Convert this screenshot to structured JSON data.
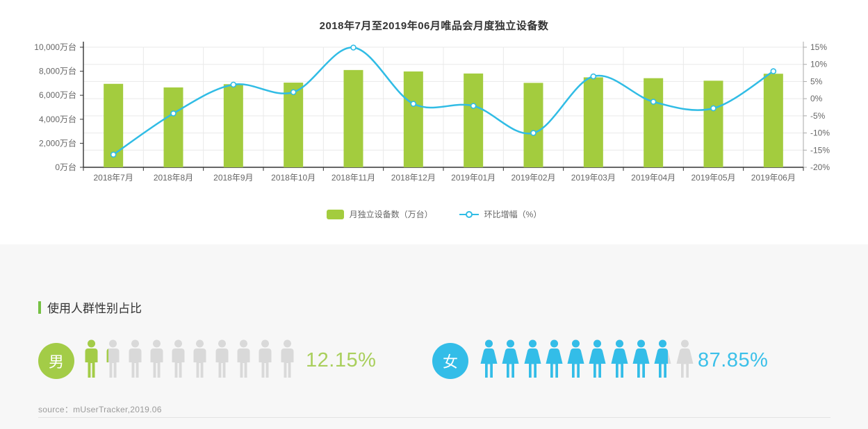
{
  "chart_data": {
    "type": "bar",
    "title": "2018年7月至2019年06月唯品会月度独立设备数",
    "categories": [
      "2018年7月",
      "2018年8月",
      "2018年9月",
      "2018年10月",
      "2018年11月",
      "2018年12月",
      "2019年01月",
      "2019年02月",
      "2019年03月",
      "2019年04月",
      "2019年05月",
      "2019年06月"
    ],
    "series": [
      {
        "name": "月独立设备数（万台）",
        "type": "bar",
        "y_axis": "left",
        "color": "#a3cc3e",
        "values": [
          6950,
          6650,
          6920,
          7050,
          8100,
          7980,
          7810,
          7030,
          7490,
          7420,
          7210,
          7790
        ]
      },
      {
        "name": "环比增幅（%）",
        "type": "line",
        "y_axis": "right",
        "color": "#30bce5",
        "values": [
          -16.3,
          -4.3,
          4.1,
          1.9,
          14.9,
          -1.5,
          -2.1,
          -10.0,
          6.5,
          -0.9,
          -2.8,
          8.0
        ]
      }
    ],
    "left_axis": {
      "min": 0,
      "max": 10000,
      "unit": "万台",
      "tick_labels_top_down": [
        "10,000万台",
        "8,000万台",
        "6,000万台",
        "4,000万台",
        "2,000万台",
        "0万台"
      ]
    },
    "right_axis": {
      "min": -20,
      "max": 15,
      "tick_labels_top_down": [
        "15%",
        "10%",
        "5%",
        "0%",
        "-5%",
        "-10%",
        "-15%",
        "-20%"
      ]
    },
    "grid": true,
    "legend_position": "bottom"
  },
  "gender_section": {
    "heading": "使用人群性别占比",
    "heading_marker_color": "#76c144",
    "total_icons": 10,
    "inactive_color": "#d9d9d9",
    "male": {
      "label": "男",
      "percent": 12.15,
      "percent_text": "12.15%",
      "color": "#a3cc47",
      "text_color": "#a9cf5c"
    },
    "female": {
      "label": "女",
      "percent": 87.85,
      "percent_text": "87.85%",
      "color": "#33bde8",
      "text_color": "#3bc0e9"
    }
  },
  "source_text": "source：mUserTracker,2019.06",
  "palette": {
    "axis": "#333333",
    "labels": "#666666",
    "grid": "#e9e9e9",
    "panel": "#ffffff",
    "page_bg": "#f7f7f7"
  }
}
